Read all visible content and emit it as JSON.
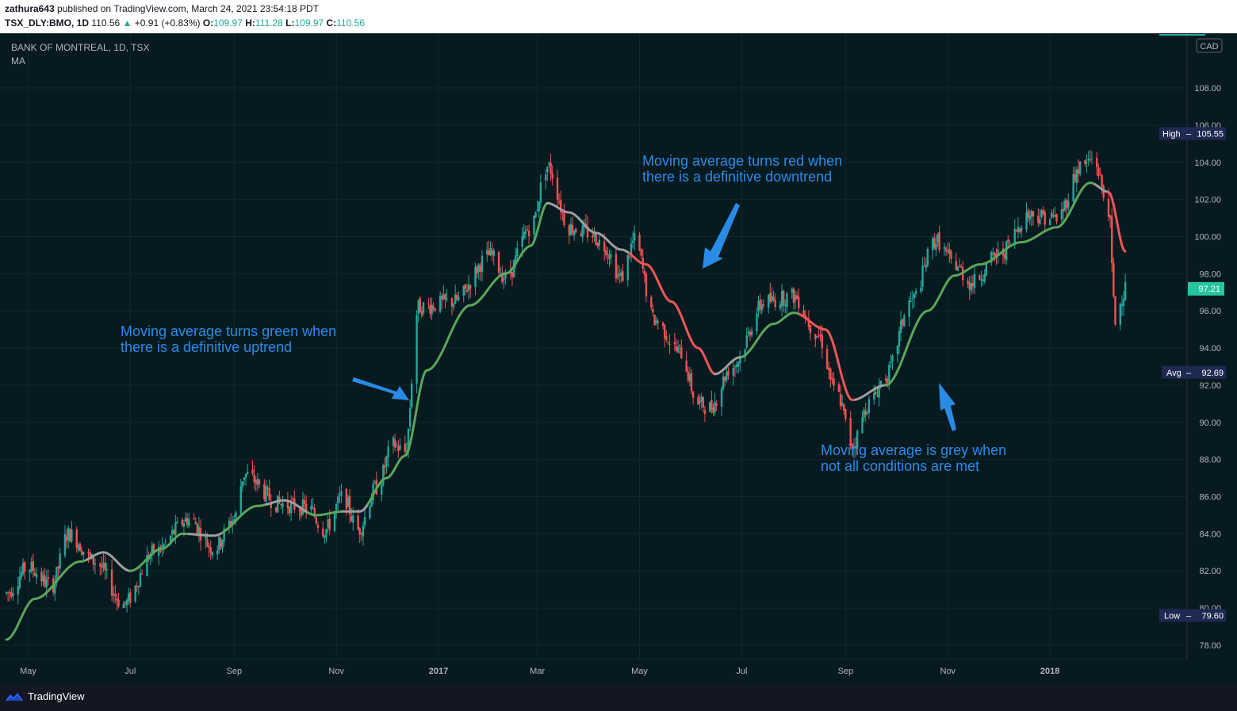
{
  "header": {
    "publisher": "zathura643",
    "publish_text": "published on TradingView.com, March 24, 2021 23:54:18 PDT",
    "symbol": "TSX_DLY:BMO, 1D",
    "last": "110.56",
    "change_arrow": "▲",
    "change": "+0.91 (+0.83%)",
    "o_label": "O:",
    "o_value": "109.97",
    "h_label": "H:",
    "h_value": "111.28",
    "l_label": "L:",
    "l_value": "109.97",
    "c_label": "C:",
    "c_value": "110.56"
  },
  "legend": {
    "title": "BANK OF MONTREAL, 1D, TSX",
    "indicator": "MA"
  },
  "currency_badge": "CAD",
  "price_badges": {
    "high_label": "High",
    "high_value": "105.55",
    "last_value": "97.21",
    "avg_label": "Avg",
    "avg_value": "92.69",
    "low_label": "Low",
    "low_value": "79.60"
  },
  "annotations": {
    "green": [
      "Moving average turns green when",
      "there is a definitive uptrend"
    ],
    "red": [
      "Moving average turns red when",
      "there is a definitive downtrend"
    ],
    "grey": [
      "Moving average is grey when",
      "not all conditions are met"
    ]
  },
  "footer": {
    "brand": "TradingView"
  },
  "colors": {
    "background": "#071a20",
    "candle_up": "#26a69a",
    "candle_down": "#ef5350",
    "ma_green": "#5aa65a",
    "ma_red": "#ef5757",
    "ma_grey": "#9e9e9e",
    "annotation": "#2a8be6"
  },
  "chart_data": {
    "type": "candlestick",
    "ylim": [
      76.5,
      110
    ],
    "y_ticks": [
      78,
      80,
      82,
      84,
      86,
      88,
      90,
      92,
      94,
      96,
      98,
      100,
      102,
      104,
      106,
      108
    ],
    "x_ticks": [
      "May",
      "Jul",
      "Sep",
      "Nov",
      "2017",
      "Mar",
      "May",
      "Jul",
      "Sep",
      "Nov",
      "2018"
    ],
    "price_anchors": [
      [
        "2016-04-18",
        80.8
      ],
      [
        "2016-05-01",
        82.2
      ],
      [
        "2016-05-15",
        81.2
      ],
      [
        "2016-05-25",
        84.0
      ],
      [
        "2016-06-10",
        82.5
      ],
      [
        "2016-06-27",
        80.2
      ],
      [
        "2016-07-15",
        83.0
      ],
      [
        "2016-08-05",
        84.8
      ],
      [
        "2016-08-20",
        83.2
      ],
      [
        "2016-09-01",
        84.8
      ],
      [
        "2016-09-07",
        87.2
      ],
      [
        "2016-09-28",
        85.6
      ],
      [
        "2016-10-15",
        85.4
      ],
      [
        "2016-10-25",
        84.2
      ],
      [
        "2016-11-05",
        86.0
      ],
      [
        "2016-11-14",
        84.2
      ],
      [
        "2016-11-25",
        86.5
      ],
      [
        "2016-12-05",
        88.8
      ],
      [
        "2016-12-12",
        88.4
      ],
      [
        "2016-12-20",
        96.2
      ],
      [
        "2017-01-10",
        96.5
      ],
      [
        "2017-02-01",
        99.0
      ],
      [
        "2017-02-10",
        97.8
      ],
      [
        "2017-02-25",
        100.5
      ],
      [
        "2017-03-07",
        103.8
      ],
      [
        "2017-03-20",
        100.5
      ],
      [
        "2017-04-01",
        100.2
      ],
      [
        "2017-04-10",
        99.5
      ],
      [
        "2017-04-20",
        97.8
      ],
      [
        "2017-04-28",
        99.8
      ],
      [
        "2017-05-10",
        95.5
      ],
      [
        "2017-05-25",
        93.8
      ],
      [
        "2017-06-05",
        91.0
      ],
      [
        "2017-06-12",
        90.8
      ],
      [
        "2017-06-25",
        93.0
      ],
      [
        "2017-07-15",
        96.5
      ],
      [
        "2017-08-01",
        96.8
      ],
      [
        "2017-08-15",
        94.8
      ],
      [
        "2017-08-27",
        91.5
      ],
      [
        "2017-09-05",
        88.8
      ],
      [
        "2017-09-15",
        91.0
      ],
      [
        "2017-09-25",
        92.5
      ],
      [
        "2017-10-10",
        96.5
      ],
      [
        "2017-10-25",
        99.8
      ],
      [
        "2017-11-05",
        98.5
      ],
      [
        "2017-11-15",
        97.5
      ],
      [
        "2017-12-01",
        99.0
      ],
      [
        "2017-12-20",
        101.2
      ],
      [
        "2018-01-05",
        101.0
      ],
      [
        "2018-01-20",
        103.8
      ],
      [
        "2018-01-27",
        104.2
      ],
      [
        "2018-02-05",
        101.5
      ],
      [
        "2018-02-09",
        95.5
      ],
      [
        "2018-02-15",
        97.2
      ]
    ],
    "ma_anchors": [
      [
        "2016-04-18",
        78.3
      ],
      [
        "2016-05-05",
        80.5
      ],
      [
        "2016-06-01",
        82.5
      ],
      [
        "2016-06-15",
        83.0
      ],
      [
        "2016-07-01",
        82.0
      ],
      [
        "2016-07-20",
        83.2
      ],
      [
        "2016-08-01",
        84.0
      ],
      [
        "2016-08-20",
        83.9
      ],
      [
        "2016-09-15",
        85.5
      ],
      [
        "2016-10-01",
        85.8
      ],
      [
        "2016-10-20",
        85.0
      ],
      [
        "2016-11-05",
        85.2
      ],
      [
        "2016-11-15",
        85.2
      ],
      [
        "2016-12-01",
        87.0
      ],
      [
        "2016-12-12",
        88.2
      ],
      [
        "2016-12-25",
        92.8
      ],
      [
        "2017-01-20",
        96.3
      ],
      [
        "2017-02-10",
        98.0
      ],
      [
        "2017-02-25",
        99.5
      ],
      [
        "2017-03-07",
        101.8
      ],
      [
        "2017-03-20",
        101.3
      ],
      [
        "2017-04-05",
        100.2
      ],
      [
        "2017-04-20",
        99.3
      ],
      [
        "2017-05-05",
        98.5
      ],
      [
        "2017-05-20",
        96.5
      ],
      [
        "2017-06-05",
        94.0
      ],
      [
        "2017-06-15",
        92.6
      ],
      [
        "2017-06-30",
        93.5
      ],
      [
        "2017-07-20",
        95.3
      ],
      [
        "2017-08-01",
        95.9
      ],
      [
        "2017-08-20",
        95.0
      ],
      [
        "2017-09-05",
        91.2
      ],
      [
        "2017-09-25",
        92.0
      ],
      [
        "2017-10-20",
        96.0
      ],
      [
        "2017-11-05",
        97.9
      ],
      [
        "2017-11-20",
        98.5
      ],
      [
        "2017-12-15",
        99.7
      ],
      [
        "2018-01-05",
        100.5
      ],
      [
        "2018-01-25",
        102.9
      ],
      [
        "2018-02-05",
        102.4
      ],
      [
        "2018-02-15",
        99.2
      ]
    ],
    "ma_color_segments": [
      [
        "2016-04-18",
        "2016-06-05",
        "green"
      ],
      [
        "2016-06-05",
        "2016-07-01",
        "grey"
      ],
      [
        "2016-07-01",
        "2016-08-05",
        "green"
      ],
      [
        "2016-08-05",
        "2016-08-25",
        "grey"
      ],
      [
        "2016-08-25",
        "2016-09-20",
        "green"
      ],
      [
        "2016-09-20",
        "2016-10-15",
        "grey"
      ],
      [
        "2016-10-15",
        "2016-11-05",
        "green"
      ],
      [
        "2016-11-05",
        "2016-11-20",
        "grey"
      ],
      [
        "2016-11-20",
        "2017-03-07",
        "green"
      ],
      [
        "2017-03-07",
        "2017-04-25",
        "grey"
      ],
      [
        "2017-04-25",
        "2017-06-15",
        "red"
      ],
      [
        "2017-06-15",
        "2017-07-01",
        "grey"
      ],
      [
        "2017-07-01",
        "2017-08-05",
        "green"
      ],
      [
        "2017-08-05",
        "2017-09-07",
        "red"
      ],
      [
        "2017-09-07",
        "2017-09-25",
        "grey"
      ],
      [
        "2017-09-25",
        "2018-01-28",
        "green"
      ],
      [
        "2018-01-28",
        "2018-02-05",
        "grey"
      ],
      [
        "2018-02-05",
        "2018-02-15",
        "red"
      ]
    ]
  }
}
